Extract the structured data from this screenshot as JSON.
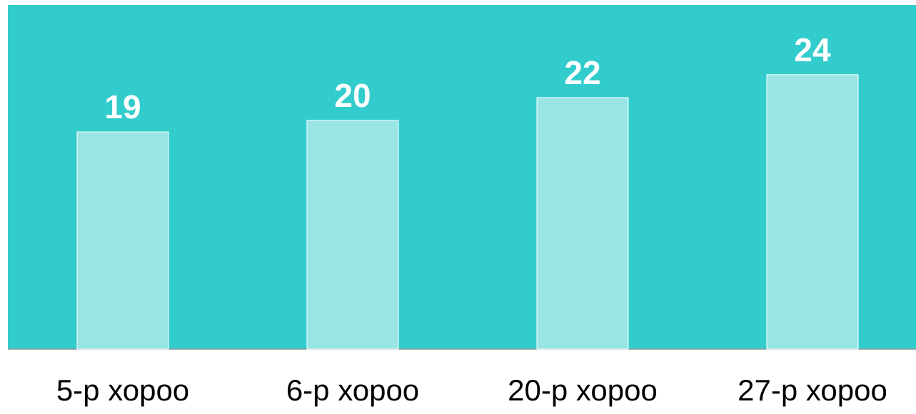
{
  "chart_data": {
    "type": "bar",
    "title": "",
    "xlabel": "",
    "ylabel": "",
    "categories": [
      "5-р хороо",
      "6-р хороо",
      "20-р хороо",
      "27-р хороо"
    ],
    "values": [
      19,
      20,
      22,
      24
    ],
    "data_labels": [
      "19",
      "20",
      "22",
      "24"
    ],
    "ylim": [
      0,
      25
    ],
    "grid": false,
    "legend": "none",
    "colors": {
      "plot_background": "#33CCCC",
      "bar_fill": "#99E5E5",
      "bar_stroke": "#FFFFFF",
      "data_label": "#FFFFFF",
      "category_label": "#000000",
      "baseline": "#999999"
    }
  }
}
